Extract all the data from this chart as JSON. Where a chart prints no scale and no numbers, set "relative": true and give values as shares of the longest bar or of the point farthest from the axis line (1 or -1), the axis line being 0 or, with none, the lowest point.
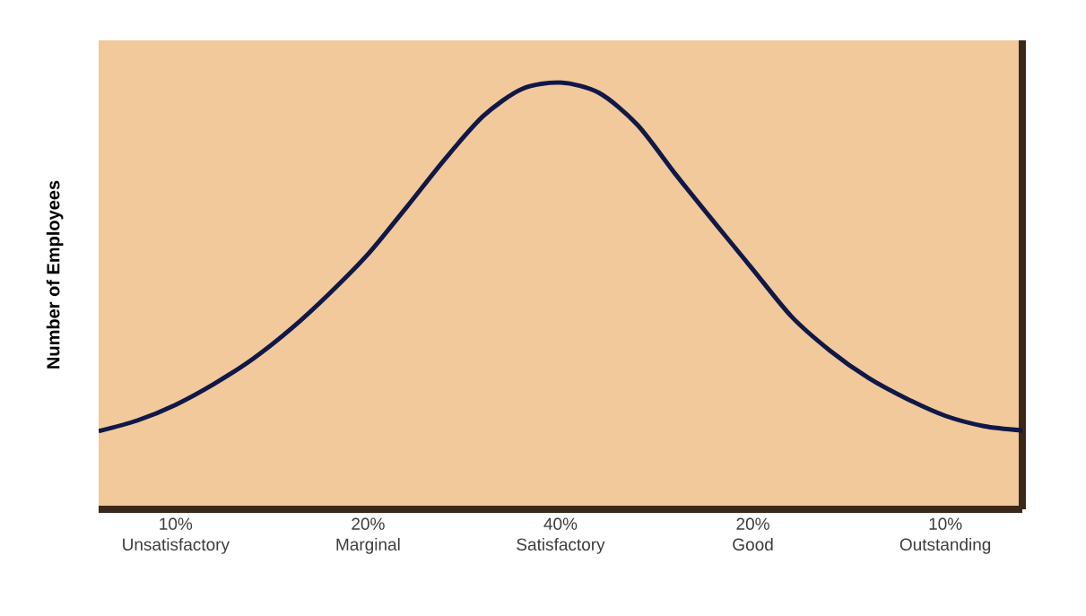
{
  "chart_data": {
    "type": "line",
    "relative": true,
    "ylabel": "Number of Employees",
    "categories": [
      null,
      null,
      "10% Unsatisfactory",
      null,
      null,
      null,
      null,
      "20% Marginal",
      null,
      null,
      null,
      null,
      "40% Satisfactory",
      null,
      null,
      null,
      null,
      "20% Good",
      null,
      null,
      null,
      null,
      "10% Outstanding",
      null,
      null
    ],
    "series": [
      {
        "color": "#101848",
        "values": [
          0.183,
          0.208,
          0.245,
          0.294,
          0.352,
          0.423,
          0.506,
          0.598,
          0.708,
          0.821,
          0.922,
          0.985,
          1,
          0.976,
          0.901,
          0.784,
          0.672,
          0.562,
          0.452,
          0.372,
          0.308,
          0.259,
          0.219,
          0.195,
          0.185
        ]
      }
    ],
    "marker": "none",
    "line_style": "solid"
  }
}
